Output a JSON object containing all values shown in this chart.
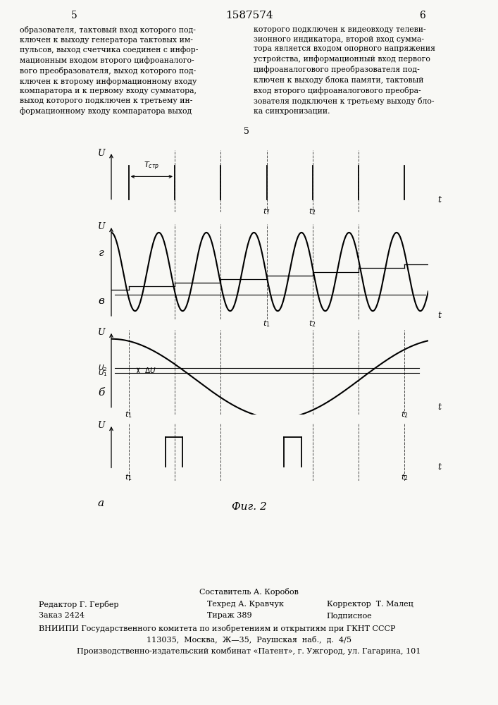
{
  "bg_color": "#f8f8f5",
  "title_text": "1587574",
  "page_num_left": "5",
  "page_num_right": "6",
  "left_text": "образователя, тактовый вход которого под-\nключен к выходу генератора тактовых им-\nпульсов, выход счетчика соединен с инфор-\nмационным входом второго цифроаналого-\nвого преобразователя, выход которого под-\nключен к второму информационному входу\nкомпаратора и к первому входу сумматора,\nвыход которого подключен к третьему ин-\nформационному входу компаратора выход",
  "right_text": "которого подключен к видеовходу телеви-\nзионного индикатора, второй вход сумма-\nтора является входом опорного напряжения\nустройства, информационный вход первого\nцифроаналогового преобразователя под-\nключен к выходу блока памяти, тактовый\nвход второго цифроаналогового преобра-\nзователя подключен к третьему выходу бло-\nка синхронизации.",
  "fig_caption": "Фиг. 2",
  "footer_line1": "Составитель А. Коробов",
  "footer_line2_left": "Редактор Г. Гербер",
  "footer_line2_mid": "Техред А. Кравчук",
  "footer_line2_right": "Корректор  Т. Малец",
  "footer_line3_left": "Заказ 2424",
  "footer_line3_mid": "Тираж 389",
  "footer_line3_right": "Подписное",
  "footer_line4": "ВНИИПИ Государственного комитета по изобретениям и открытиям при ГКНТ СССР",
  "footer_line5": "113035,  Москва,  Ж—35,  Раушская  наб.,  д.  4/5",
  "footer_line6": "Производственно-издательский комбинат «Патент», г. Ужгород, ул. Гагарина, 101"
}
